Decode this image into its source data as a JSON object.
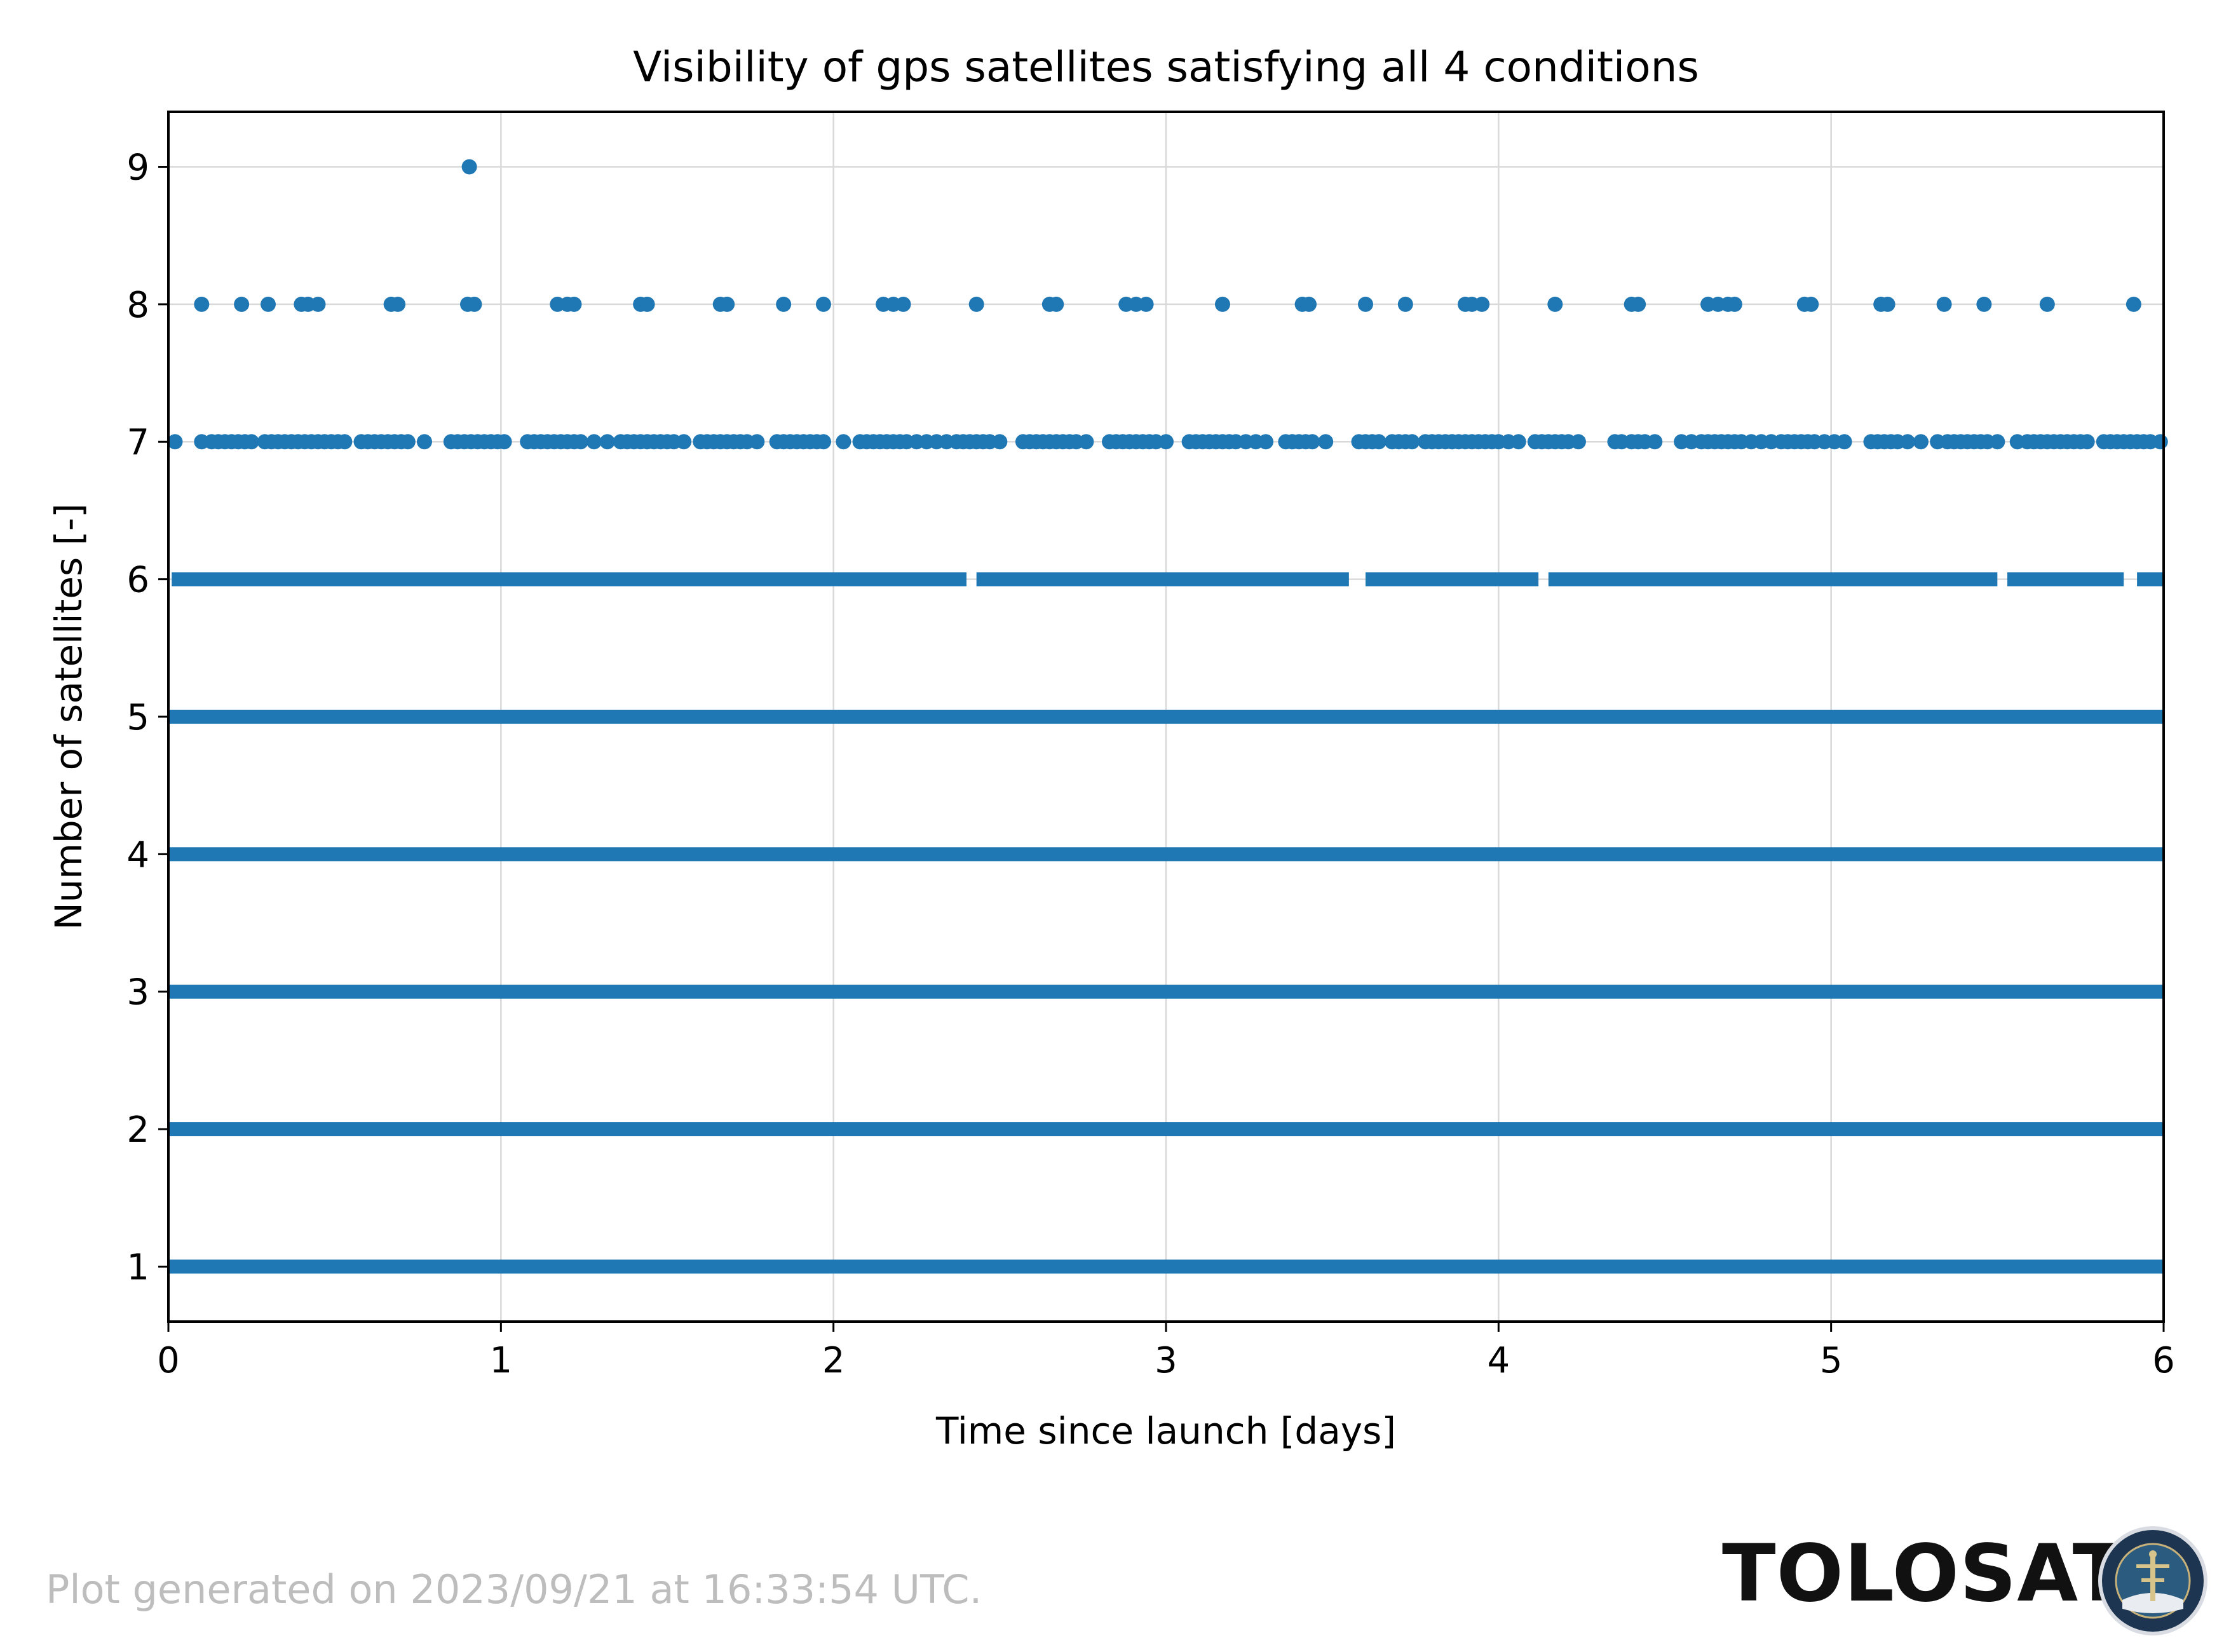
{
  "chart_data": {
    "type": "scatter",
    "title": "Visibility of gps satellites satisfying all 4 conditions",
    "xlabel": "Time since launch [days]",
    "ylabel": "Number of satellites [-]",
    "xlim": [
      0,
      6
    ],
    "ylim": [
      0.6,
      9.4
    ],
    "xticks": [
      "0",
      "1",
      "2",
      "3",
      "4",
      "5",
      "6"
    ],
    "yticks": [
      "1",
      "2",
      "3",
      "4",
      "5",
      "6",
      "7",
      "8",
      "9"
    ],
    "grid": true,
    "marker_color": "#1f77b4",
    "series": [
      {
        "dense_levels": [
          1,
          2,
          3,
          4,
          5
        ],
        "level_6_range": [
          0,
          6
        ],
        "level_6_gaps": [
          [
            0.0,
            0.01
          ],
          [
            2.4,
            2.43
          ],
          [
            3.55,
            3.6
          ],
          [
            4.12,
            4.15
          ],
          [
            5.5,
            5.53
          ],
          [
            5.88,
            5.92
          ]
        ],
        "level_7_x": [
          0.02,
          0.1,
          0.13,
          0.15,
          0.17,
          0.19,
          0.21,
          0.23,
          0.25,
          0.29,
          0.31,
          0.33,
          0.35,
          0.37,
          0.39,
          0.41,
          0.43,
          0.45,
          0.47,
          0.49,
          0.51,
          0.53,
          0.58,
          0.6,
          0.62,
          0.64,
          0.66,
          0.68,
          0.7,
          0.72,
          0.77,
          0.85,
          0.87,
          0.89,
          0.91,
          0.93,
          0.95,
          0.97,
          0.99,
          1.01,
          1.08,
          1.1,
          1.12,
          1.14,
          1.16,
          1.18,
          1.2,
          1.22,
          1.24,
          1.28,
          1.32,
          1.36,
          1.38,
          1.4,
          1.42,
          1.44,
          1.46,
          1.48,
          1.5,
          1.52,
          1.55,
          1.6,
          1.62,
          1.64,
          1.66,
          1.68,
          1.7,
          1.72,
          1.74,
          1.77,
          1.83,
          1.85,
          1.87,
          1.89,
          1.91,
          1.93,
          1.95,
          1.97,
          2.03,
          2.08,
          2.1,
          2.12,
          2.14,
          2.16,
          2.18,
          2.2,
          2.22,
          2.25,
          2.28,
          2.31,
          2.34,
          2.37,
          2.39,
          2.41,
          2.43,
          2.45,
          2.47,
          2.5,
          2.57,
          2.59,
          2.61,
          2.63,
          2.65,
          2.67,
          2.69,
          2.71,
          2.73,
          2.76,
          2.83,
          2.85,
          2.87,
          2.89,
          2.91,
          2.93,
          2.95,
          2.97,
          3.0,
          3.07,
          3.09,
          3.11,
          3.13,
          3.15,
          3.17,
          3.19,
          3.21,
          3.24,
          3.27,
          3.3,
          3.36,
          3.38,
          3.4,
          3.42,
          3.44,
          3.48,
          3.58,
          3.6,
          3.62,
          3.64,
          3.68,
          3.7,
          3.72,
          3.74,
          3.78,
          3.8,
          3.82,
          3.84,
          3.86,
          3.88,
          3.9,
          3.92,
          3.94,
          3.96,
          3.98,
          4.0,
          4.03,
          4.06,
          4.11,
          4.13,
          4.15,
          4.17,
          4.19,
          4.21,
          4.24,
          4.35,
          4.37,
          4.4,
          4.42,
          4.44,
          4.47,
          4.55,
          4.58,
          4.61,
          4.63,
          4.65,
          4.67,
          4.69,
          4.71,
          4.73,
          4.76,
          4.79,
          4.82,
          4.85,
          4.87,
          4.89,
          4.91,
          4.93,
          4.95,
          4.98,
          5.01,
          5.04,
          5.12,
          5.14,
          5.16,
          5.18,
          5.2,
          5.23,
          5.27,
          5.32,
          5.35,
          5.37,
          5.39,
          5.41,
          5.43,
          5.45,
          5.47,
          5.5,
          5.56,
          5.59,
          5.61,
          5.63,
          5.65,
          5.67,
          5.69,
          5.71,
          5.73,
          5.75,
          5.77,
          5.82,
          5.84,
          5.86,
          5.88,
          5.9,
          5.92,
          5.94,
          5.96,
          5.99
        ],
        "level_8_x": [
          0.1,
          0.22,
          0.3,
          0.4,
          0.42,
          0.45,
          0.67,
          0.69,
          0.9,
          0.92,
          1.17,
          1.2,
          1.22,
          1.42,
          1.44,
          1.66,
          1.68,
          1.85,
          1.97,
          2.15,
          2.18,
          2.21,
          2.43,
          2.65,
          2.67,
          2.88,
          2.91,
          2.94,
          3.17,
          3.41,
          3.43,
          3.6,
          3.72,
          3.9,
          3.92,
          3.95,
          4.17,
          4.4,
          4.42,
          4.63,
          4.66,
          4.69,
          4.71,
          4.92,
          4.94,
          5.15,
          5.17,
          5.34,
          5.46,
          5.65,
          5.91
        ],
        "level_9_x": [
          0.905
        ]
      }
    ]
  },
  "footer": {
    "note": "Plot generated on 2023/09/21 at 16:33:54 UTC.",
    "brand": "TOLOSAT"
  }
}
